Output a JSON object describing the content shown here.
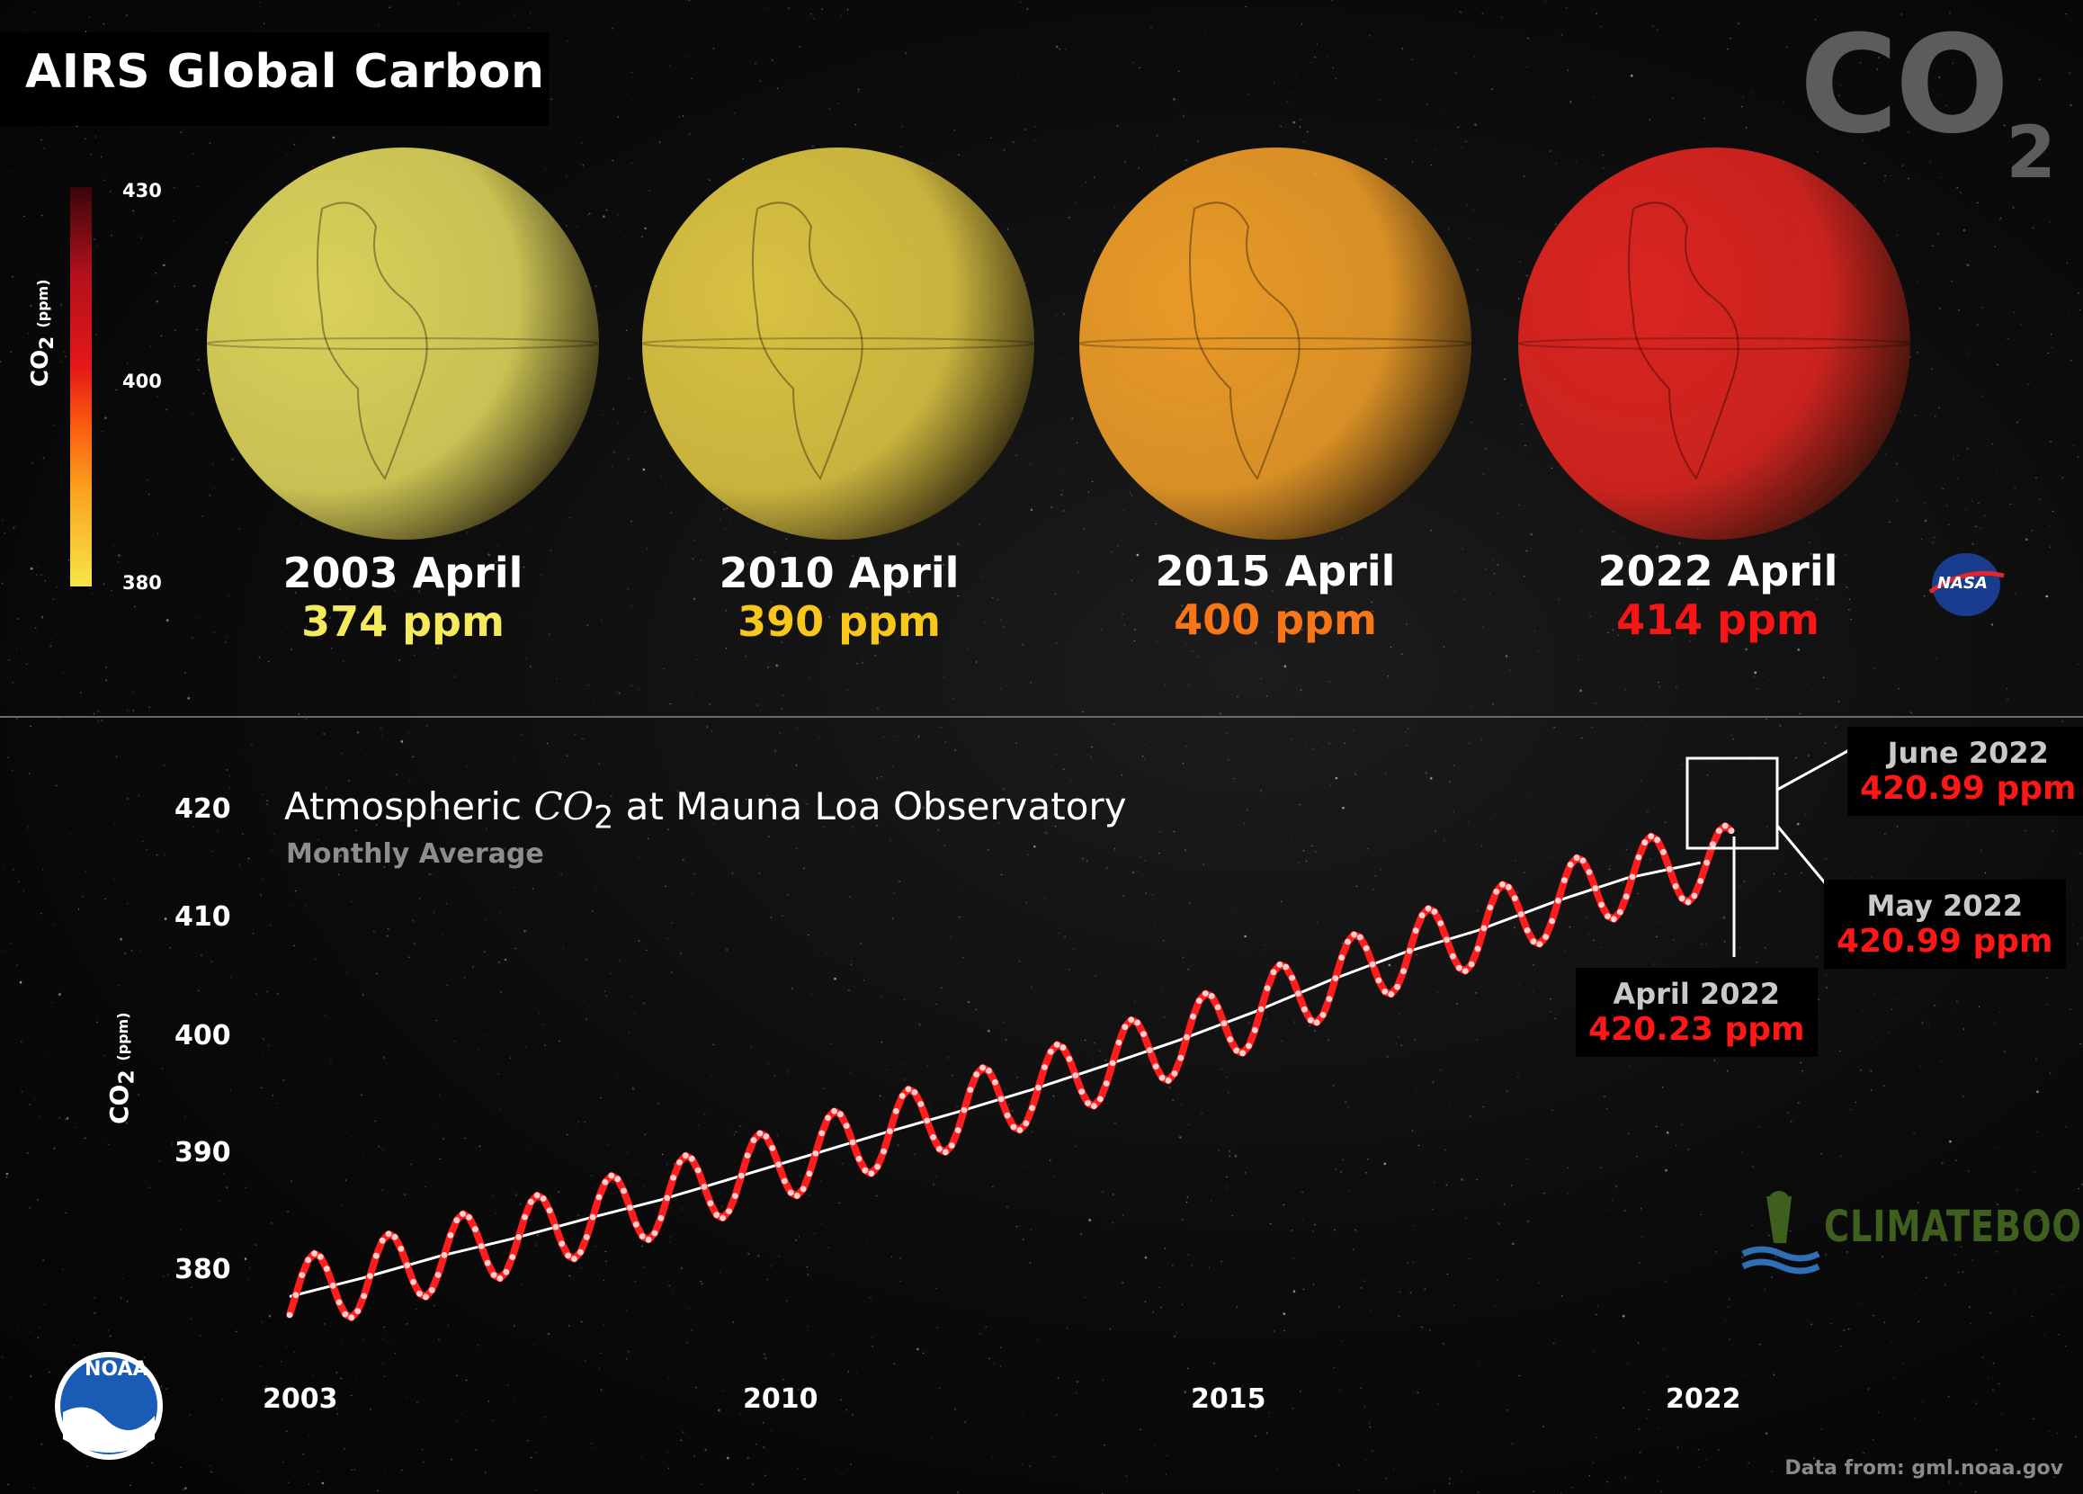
{
  "title": "AIRS Global Carbon",
  "co2_mark": {
    "base": "CO",
    "sub": "2"
  },
  "colorbar": {
    "label": "CO",
    "label_sub": "2",
    "label_unit": "(ppm)",
    "ticks": [
      "430",
      "400",
      "380"
    ],
    "min": 380,
    "max": 430
  },
  "globes": [
    {
      "label": "2003 April",
      "value": "374 ppm",
      "color": "#f5ea5c",
      "globe_color": "#d9d15a"
    },
    {
      "label": "2010 April",
      "value": "390 ppm",
      "color": "#f7c81b",
      "globe_color": "#d8c142"
    },
    {
      "label": "2015 April",
      "value": "400 ppm",
      "color": "#f87617",
      "globe_color": "#e99a28"
    },
    {
      "label": "2022 April",
      "value": "414 ppm",
      "color": "#f71515",
      "globe_color": "#da2520"
    }
  ],
  "logos": {
    "nasa": "NASA",
    "noaa": "NOAA",
    "climatebook": "CLIMATEBOOK"
  },
  "chart": {
    "title_prefix": "Atmospheric ",
    "title_var": "CO",
    "title_sub": "2",
    "title_suffix": " at Mauna Loa Observatory",
    "subtitle": "Monthly Average",
    "ylabel": "CO",
    "ylabel_sub": "2",
    "ylabel_unit": "(ppm)",
    "yticks": [
      "420",
      "410",
      "400",
      "390",
      "380"
    ],
    "xticks": [
      "2003",
      "2010",
      "2015",
      "2022"
    ],
    "credit": "Data from: gml.noaa.gov"
  },
  "callouts": [
    {
      "month": "June 2022",
      "value": "420.99 ppm"
    },
    {
      "month": "May 2022",
      "value": "420.99 ppm"
    },
    {
      "month": "April 2022",
      "value": "420.23 ppm"
    }
  ],
  "chart_data": {
    "type": "line",
    "title": "Atmospheric CO2 at Mauna Loa Observatory",
    "subtitle": "Monthly Average",
    "xlabel": "",
    "ylabel": "CO2 (ppm)",
    "xlim": [
      2003.0,
      2022.5
    ],
    "ylim": [
      373.5,
      422.0
    ],
    "xticks": [
      2003,
      2010,
      2015,
      2022
    ],
    "yticks": [
      380,
      390,
      400,
      410,
      420
    ],
    "grid": false,
    "series": [
      {
        "name": "",
        "kind": "monthly",
        "color": "#ff1c1c",
        "x_start": 2003.0,
        "x_step_months": 1,
        "count": 234,
        "y_trend": [
          375.8,
          377.5,
          379.4,
          381.0,
          382.8,
          384.5,
          386.5,
          388.5,
          390.5,
          392.4,
          394.4,
          396.6,
          398.9,
          401.4,
          404.2,
          406.7,
          408.7,
          411.2,
          413.4,
          414.8
        ],
        "seasonal_amplitude": 3.3
      },
      {
        "name": "",
        "kind": "trend",
        "color": "#ffffff",
        "x": [
          2003.0,
          2004.0,
          2005.0,
          2006.0,
          2007.0,
          2008.0,
          2009.0,
          2010.0,
          2011.0,
          2012.0,
          2013.0,
          2014.0,
          2015.0,
          2016.0,
          2017.0,
          2018.0,
          2019.0,
          2020.0,
          2021.0,
          2022.0
        ],
        "y": [
          375.8,
          377.5,
          379.4,
          381.0,
          382.8,
          384.5,
          386.5,
          388.5,
          390.5,
          392.4,
          394.4,
          396.6,
          398.9,
          401.4,
          404.2,
          406.7,
          408.7,
          411.2,
          413.4,
          414.8
        ]
      }
    ],
    "annotations": [
      {
        "label": "June 2022",
        "x": 2022.42,
        "y": 420.99
      },
      {
        "label": "May 2022",
        "x": 2022.33,
        "y": 420.99
      },
      {
        "label": "April 2022",
        "x": 2022.25,
        "y": 420.23
      }
    ]
  }
}
